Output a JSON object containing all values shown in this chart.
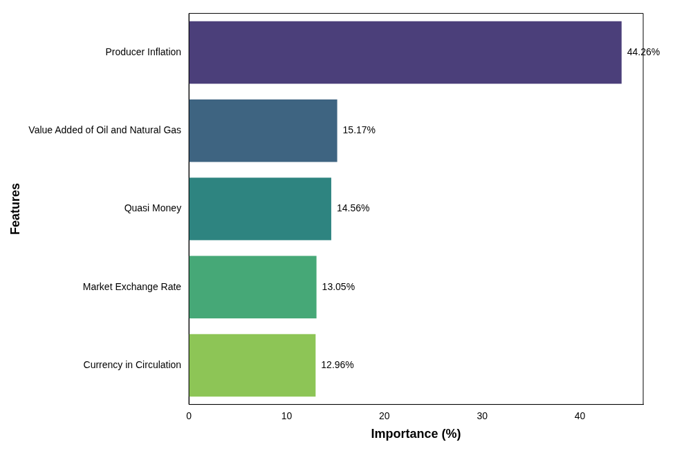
{
  "chart_data": {
    "type": "bar",
    "orientation": "horizontal",
    "xlabel": "Importance (%)",
    "ylabel": "Features",
    "categories": [
      "Producer Inflation",
      "Value Added of Oil and Natural Gas",
      "Quasi Money",
      "Market Exchange Rate",
      "Currency in Circulation"
    ],
    "values": [
      44.26,
      15.17,
      14.56,
      13.05,
      12.96
    ],
    "colors": [
      "#4b3f7a",
      "#3e6481",
      "#2e8480",
      "#46a877",
      "#8dc556"
    ],
    "value_labels": [
      "44.26%",
      "15.17%",
      "14.56%",
      "13.05%",
      "12.96%"
    ],
    "xlim": [
      0,
      46.47
    ],
    "xticks": [
      0,
      10,
      20,
      30,
      40
    ],
    "grid": false,
    "legend": false
  }
}
